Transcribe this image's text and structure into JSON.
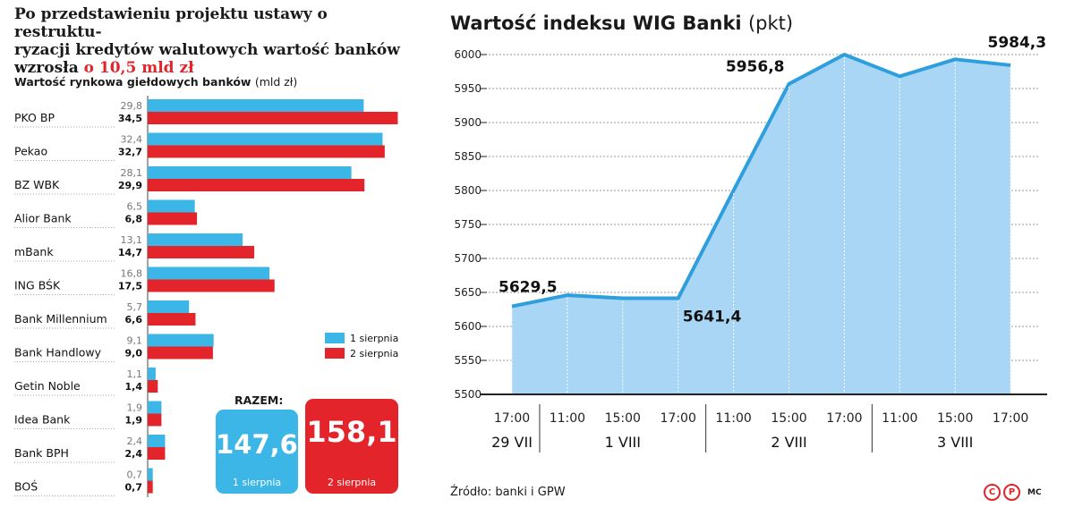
{
  "headline": {
    "line1": "Po przedstawieniu projektu ustawy o restruktu-",
    "line2": "ryzacji kredytów walutowych wartość banków",
    "line3_plain": "wzrosła ",
    "line3_highlight": "o 10,5 mld zł"
  },
  "totals": {
    "heading": "RAZEM:",
    "blue_value": "147,6",
    "blue_label": "1 sierpnia",
    "red_value": "158,1",
    "red_label": "2 sierpnia"
  },
  "source": "Źródło: banki i GPW",
  "credits": {
    "c_mark": "C",
    "p_mark": "P",
    "initials": "MC"
  },
  "colors": {
    "blue": "#3bb6e6",
    "red": "#e3252b",
    "area_fill": "#a9d6f5",
    "line": "#2e9fdc"
  },
  "chart_data": [
    {
      "type": "bar",
      "orientation": "horizontal",
      "title": "Wartość rynkowa giełdowych banków",
      "unit": "(mld zł)",
      "categories": [
        "PKO BP",
        "Pekao",
        "BZ WBK",
        "Alior Bank",
        "mBank",
        "ING BŚK",
        "Bank Millennium",
        "Bank Handlowy",
        "Getin Noble",
        "Idea Bank",
        "Bank BPH",
        "BOŚ"
      ],
      "series": [
        {
          "name": "1 sierpnia",
          "color": "#3bb6e6",
          "values": [
            29.8,
            32.4,
            28.1,
            6.5,
            13.1,
            16.8,
            5.7,
            9.1,
            1.1,
            1.9,
            2.4,
            0.7
          ],
          "labels": [
            "29,8",
            "32,4",
            "28,1",
            "6,5",
            "13,1",
            "16,8",
            "5,7",
            "9,1",
            "1,1",
            "1,9",
            "2,4",
            "0,7"
          ]
        },
        {
          "name": "2 sierpnia",
          "color": "#e3252b",
          "values": [
            34.5,
            32.7,
            29.9,
            6.8,
            14.7,
            17.5,
            6.6,
            9.0,
            1.4,
            1.9,
            2.4,
            0.7
          ],
          "labels": [
            "34,5",
            "32,7",
            "29,9",
            "6,8",
            "14,7",
            "17,5",
            "6,6",
            "9,0",
            "1,4",
            "1,9",
            "2,4",
            "0,7"
          ]
        }
      ],
      "legend_position": "right"
    },
    {
      "type": "area",
      "title": "Wartość indeksu WIG Banki",
      "unit": "(pkt)",
      "x_times": [
        "17:00",
        "11:00",
        "15:00",
        "17:00",
        "11:00",
        "15:00",
        "17:00",
        "11:00",
        "15:00",
        "17:00"
      ],
      "x_days": [
        {
          "label": "29 VII",
          "span": [
            0,
            0
          ]
        },
        {
          "label": "1 VIII",
          "span": [
            1,
            3
          ]
        },
        {
          "label": "2 VIII",
          "span": [
            4,
            6
          ]
        },
        {
          "label": "3 VIII",
          "span": [
            7,
            9
          ]
        }
      ],
      "values": [
        5629.5,
        5646,
        5641.4,
        5641.4,
        5800,
        5956.8,
        6000,
        5968,
        5993,
        5984.3
      ],
      "annotations": [
        {
          "index": 0,
          "text": "5629,5"
        },
        {
          "index": 3,
          "text": "5641,4"
        },
        {
          "index": 5,
          "text": "5956,8"
        },
        {
          "index": 9,
          "text": "5984,3"
        }
      ],
      "ylim": [
        5500,
        6000
      ],
      "yticks": [
        5500,
        5550,
        5600,
        5650,
        5700,
        5750,
        5800,
        5850,
        5900,
        5950,
        6000
      ],
      "grid": true
    }
  ]
}
